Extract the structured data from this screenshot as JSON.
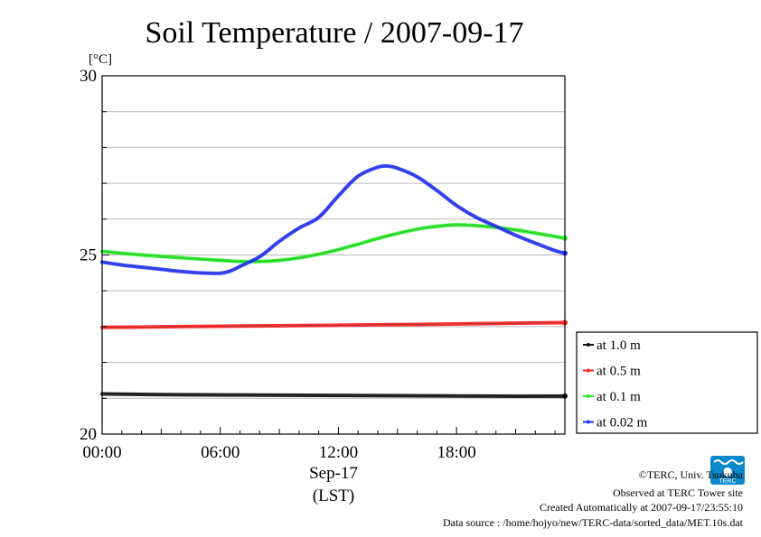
{
  "chart_data": {
    "type": "line",
    "title": "Soil Temperature / 2007-09-17",
    "ylabel": "[°C]",
    "xlabel": "Sep-17",
    "xunit": "(LST)",
    "ylim": [
      20,
      30
    ],
    "xlim": [
      0,
      23.5
    ],
    "yticks": [
      20,
      25,
      30
    ],
    "ytick_labels": [
      "20",
      "25",
      "30"
    ],
    "xticks": [
      0,
      6,
      12,
      18
    ],
    "xtick_labels": [
      "00:00",
      "06:00",
      "12:00",
      "18:00"
    ],
    "grid": true,
    "legend_position": "bottom-right",
    "series": [
      {
        "name": "at 1.0 m",
        "color": "#111111",
        "x": [
          0,
          4,
          8,
          12,
          16,
          20,
          23.5
        ],
        "y": [
          21.12,
          21.1,
          21.09,
          21.08,
          21.07,
          21.06,
          21.06
        ]
      },
      {
        "name": "at 0.5 m",
        "color": "#ff2020",
        "x": [
          0,
          4,
          8,
          12,
          16,
          20,
          23.5
        ],
        "y": [
          22.98,
          23.0,
          23.02,
          23.04,
          23.06,
          23.09,
          23.11
        ]
      },
      {
        "name": "at 0.1 m",
        "color": "#22ee22",
        "x": [
          0,
          2,
          4,
          6,
          7,
          8,
          9,
          10,
          11,
          12,
          13,
          14,
          15,
          16,
          17,
          18,
          19,
          20,
          21,
          22,
          23.5
        ],
        "y": [
          25.1,
          25.0,
          24.92,
          24.85,
          24.82,
          24.82,
          24.85,
          24.92,
          25.02,
          25.15,
          25.3,
          25.46,
          25.6,
          25.72,
          25.8,
          25.84,
          25.82,
          25.77,
          25.7,
          25.61,
          25.47
        ]
      },
      {
        "name": "at 0.02 m",
        "color": "#2233ff",
        "x": [
          0,
          1,
          2,
          3,
          4,
          5,
          6,
          6.5,
          7,
          8,
          9,
          10,
          11,
          12,
          13,
          14,
          14.5,
          15,
          16,
          17,
          18,
          19,
          20,
          21,
          22,
          23,
          23.5
        ],
        "y": [
          24.8,
          24.72,
          24.66,
          24.6,
          24.54,
          24.5,
          24.49,
          24.55,
          24.68,
          24.95,
          25.38,
          25.75,
          26.05,
          26.65,
          27.2,
          27.45,
          27.48,
          27.42,
          27.18,
          26.8,
          26.38,
          26.05,
          25.8,
          25.55,
          25.33,
          25.12,
          25.05
        ]
      }
    ]
  },
  "credits": {
    "copyright": "©TERC, Univ. Tsukuba",
    "observed": "Observed at TERC Tower site",
    "created": "Created Automatically at 2007-09-17/23:55:10",
    "source": "Data source : /home/hojyo/new/TERC-data/sorted_data/MET.10s.dat"
  },
  "logo": {
    "text": "TERC",
    "color": "#0a88cc"
  }
}
